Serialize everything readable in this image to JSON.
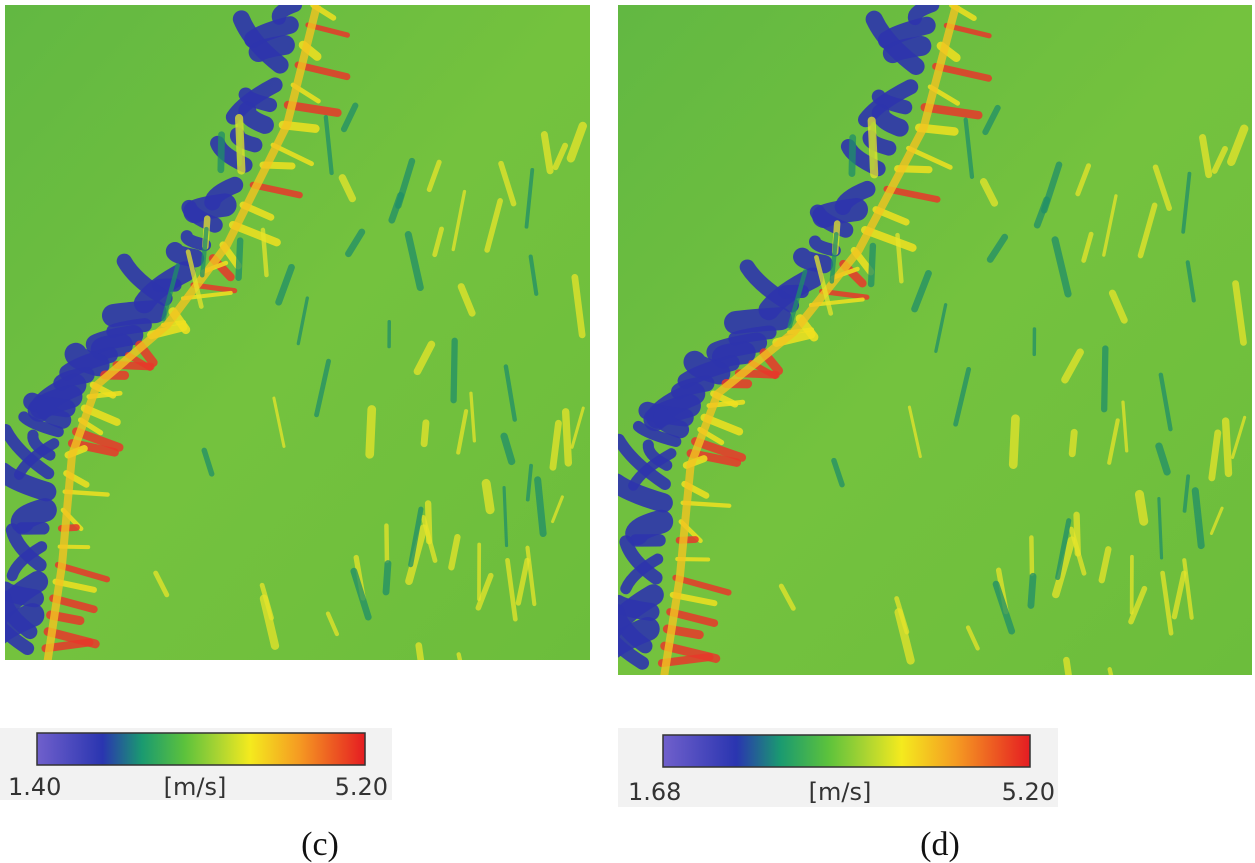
{
  "panels": [
    {
      "caption": "(c)",
      "colorbar": {
        "min_label": "1.40",
        "unit": "[m/s]",
        "max_label": "5.20"
      }
    },
    {
      "caption": "(d)",
      "colorbar": {
        "min_label": "1.68",
        "unit": "[m/s]",
        "max_label": "5.20"
      }
    }
  ]
}
